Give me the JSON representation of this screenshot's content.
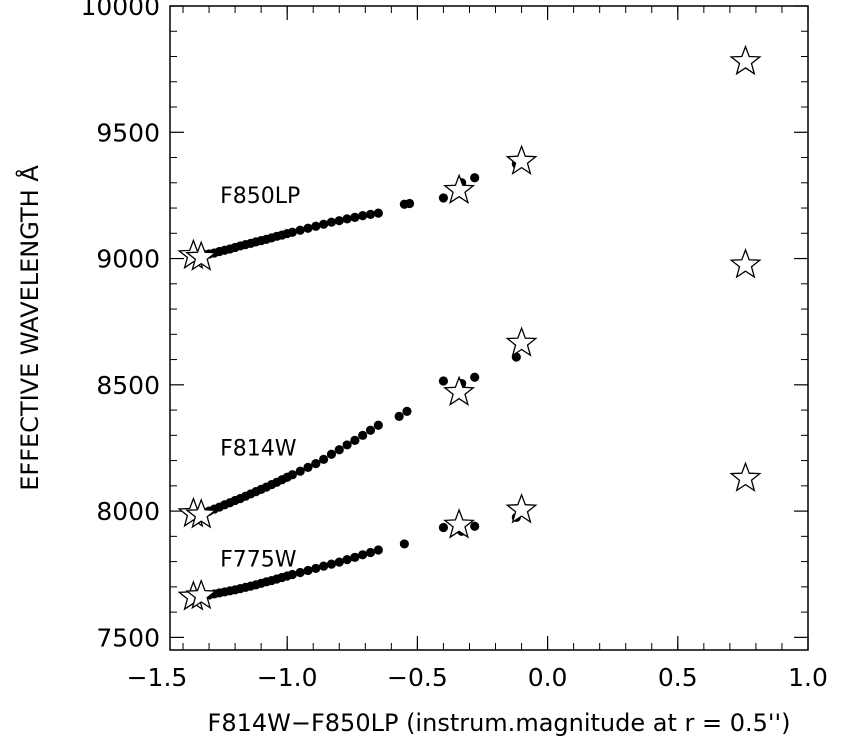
{
  "chart_data": {
    "type": "scatter",
    "title": "",
    "xlabel": "F814W−F850LP (instrum.magnitude at r = 0.5'')",
    "ylabel": "EFFECTIVE WAVELENGTH Å",
    "xlim": [
      -1.45,
      1.0
    ],
    "ylim": [
      7450,
      10000
    ],
    "x_ticks": [
      -1.5,
      -1.0,
      -0.5,
      0.0,
      0.5,
      1.0
    ],
    "x_tick_labels": [
      "−1.5",
      "−1.0",
      "−0.5",
      "0.0",
      "0.5",
      "1.0"
    ],
    "y_ticks": [
      7500,
      8000,
      8500,
      9000,
      9500,
      10000
    ],
    "y_tick_labels": [
      "7500",
      "8000",
      "8500",
      "9000",
      "9500",
      "10000"
    ],
    "grid": false,
    "series": [
      {
        "name": "F850LP",
        "label_at": [
          -1.25,
          9220
        ],
        "dots": [
          [
            -1.36,
            9003
          ],
          [
            -1.34,
            9008
          ],
          [
            -1.32,
            9012
          ],
          [
            -1.3,
            9018
          ],
          [
            -1.28,
            9022
          ],
          [
            -1.26,
            9028
          ],
          [
            -1.24,
            9033
          ],
          [
            -1.22,
            9038
          ],
          [
            -1.2,
            9044
          ],
          [
            -1.18,
            9050
          ],
          [
            -1.16,
            9055
          ],
          [
            -1.14,
            9060
          ],
          [
            -1.12,
            9066
          ],
          [
            -1.1,
            9071
          ],
          [
            -1.08,
            9076
          ],
          [
            -1.06,
            9082
          ],
          [
            -1.04,
            9088
          ],
          [
            -1.02,
            9093
          ],
          [
            -1.0,
            9099
          ],
          [
            -0.98,
            9104
          ],
          [
            -0.95,
            9112
          ],
          [
            -0.92,
            9120
          ],
          [
            -0.89,
            9128
          ],
          [
            -0.86,
            9136
          ],
          [
            -0.83,
            9144
          ],
          [
            -0.8,
            9150
          ],
          [
            -0.77,
            9157
          ],
          [
            -0.74,
            9163
          ],
          [
            -0.71,
            9170
          ],
          [
            -0.68,
            9175
          ],
          [
            -0.65,
            9180
          ],
          [
            -0.55,
            9215
          ],
          [
            -0.53,
            9218
          ],
          [
            -0.4,
            9240
          ],
          [
            -0.33,
            9300
          ],
          [
            -0.28,
            9320
          ],
          [
            -0.12,
            9375
          ]
        ],
        "stars": [
          [
            -1.36,
            9012
          ],
          [
            -1.33,
            9005
          ],
          [
            -0.34,
            9270
          ],
          [
            -0.1,
            9385
          ],
          [
            0.76,
            9780
          ],
          [
            0.76,
            8975
          ]
        ]
      },
      {
        "name": "F814W",
        "label_at": [
          -1.25,
          8220
        ],
        "dots": [
          [
            -1.36,
            7978
          ],
          [
            -1.34,
            7984
          ],
          [
            -1.32,
            7992
          ],
          [
            -1.3,
            8000
          ],
          [
            -1.28,
            8008
          ],
          [
            -1.26,
            8016
          ],
          [
            -1.24,
            8025
          ],
          [
            -1.22,
            8033
          ],
          [
            -1.2,
            8042
          ],
          [
            -1.18,
            8050
          ],
          [
            -1.16,
            8059
          ],
          [
            -1.14,
            8068
          ],
          [
            -1.12,
            8077
          ],
          [
            -1.1,
            8086
          ],
          [
            -1.08,
            8095
          ],
          [
            -1.06,
            8105
          ],
          [
            -1.04,
            8114
          ],
          [
            -1.02,
            8124
          ],
          [
            -1.0,
            8134
          ],
          [
            -0.98,
            8144
          ],
          [
            -0.95,
            8158
          ],
          [
            -0.92,
            8173
          ],
          [
            -0.89,
            8188
          ],
          [
            -0.86,
            8205
          ],
          [
            -0.83,
            8225
          ],
          [
            -0.8,
            8243
          ],
          [
            -0.77,
            8262
          ],
          [
            -0.74,
            8280
          ],
          [
            -0.71,
            8300
          ],
          [
            -0.68,
            8320
          ],
          [
            -0.65,
            8340
          ],
          [
            -0.57,
            8375
          ],
          [
            -0.54,
            8395
          ],
          [
            -0.4,
            8515
          ],
          [
            -0.33,
            8505
          ],
          [
            -0.28,
            8530
          ],
          [
            -0.12,
            8610
          ]
        ],
        "stars": [
          [
            -1.36,
            7990
          ],
          [
            -1.33,
            7985
          ],
          [
            -0.34,
            8470
          ],
          [
            -0.1,
            8665
          ],
          [
            0.76,
            8130
          ]
        ]
      },
      {
        "name": "F775W",
        "label_at": [
          -1.25,
          7780
        ],
        "dots": [
          [
            -1.36,
            7660
          ],
          [
            -1.34,
            7662
          ],
          [
            -1.32,
            7665
          ],
          [
            -1.3,
            7668
          ],
          [
            -1.28,
            7672
          ],
          [
            -1.26,
            7676
          ],
          [
            -1.24,
            7680
          ],
          [
            -1.22,
            7684
          ],
          [
            -1.2,
            7688
          ],
          [
            -1.18,
            7693
          ],
          [
            -1.16,
            7698
          ],
          [
            -1.14,
            7703
          ],
          [
            -1.12,
            7708
          ],
          [
            -1.1,
            7714
          ],
          [
            -1.08,
            7720
          ],
          [
            -1.06,
            7725
          ],
          [
            -1.04,
            7731
          ],
          [
            -1.02,
            7737
          ],
          [
            -1.0,
            7743
          ],
          [
            -0.98,
            7749
          ],
          [
            -0.95,
            7757
          ],
          [
            -0.92,
            7765
          ],
          [
            -0.89,
            7773
          ],
          [
            -0.86,
            7782
          ],
          [
            -0.83,
            7790
          ],
          [
            -0.8,
            7798
          ],
          [
            -0.77,
            7808
          ],
          [
            -0.74,
            7817
          ],
          [
            -0.71,
            7827
          ],
          [
            -0.68,
            7836
          ],
          [
            -0.65,
            7846
          ],
          [
            -0.55,
            7870
          ],
          [
            -0.4,
            7935
          ],
          [
            -0.33,
            7920
          ],
          [
            -0.28,
            7940
          ],
          [
            -0.12,
            7975
          ]
        ],
        "stars": [
          [
            -1.36,
            7660
          ],
          [
            -1.33,
            7665
          ],
          [
            -0.34,
            7945
          ],
          [
            -0.1,
            8005
          ]
        ]
      }
    ]
  }
}
